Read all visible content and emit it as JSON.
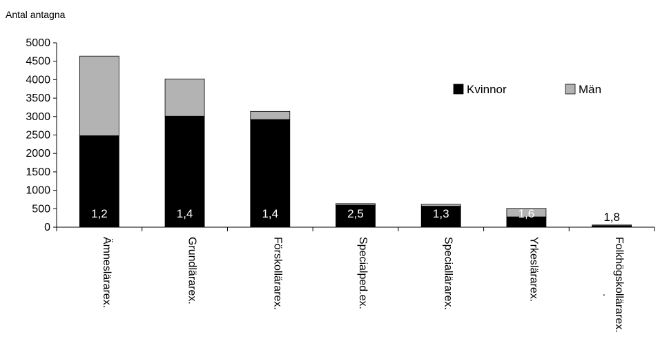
{
  "chart_data": {
    "type": "bar",
    "stacked": true,
    "ylabel": "Antal antagna",
    "ylim": [
      0,
      5000
    ],
    "yticks": [
      0,
      500,
      1000,
      1500,
      2000,
      2500,
      3000,
      3500,
      4000,
      4500,
      5000
    ],
    "categories": [
      "Ämneslärarex.",
      "Grundlärarex.",
      "Förskollärarex.",
      "Specialped.ex.",
      "Speciallärarex.",
      "Yrkeslärarex.",
      "Folkhögskollärarex."
    ],
    "category_suffix": [
      "",
      "",
      "",
      "",
      "",
      "",
      "."
    ],
    "series": [
      {
        "name": "Kvinnor",
        "color": "#000000",
        "values": [
          2480,
          3010,
          2920,
          600,
          570,
          280,
          40
        ]
      },
      {
        "name": "Män",
        "color": "#b3b3b3",
        "values": [
          2160,
          1010,
          220,
          40,
          50,
          230,
          20
        ]
      }
    ],
    "bar_labels": [
      "1,2",
      "1,4",
      "1,4",
      "2,5",
      "1,3",
      "1,6",
      "1,8"
    ],
    "legend": "top-right",
    "grid": false
  }
}
